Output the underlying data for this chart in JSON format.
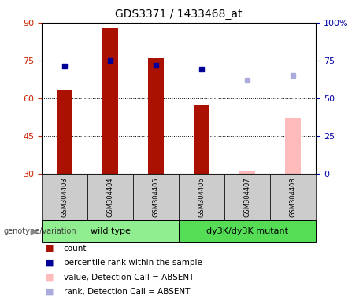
{
  "title": "GDS3371 / 1433468_at",
  "categories": [
    "GSM304403",
    "GSM304404",
    "GSM304405",
    "GSM304406",
    "GSM304407",
    "GSM304408"
  ],
  "count_values": [
    63,
    88,
    76,
    57,
    null,
    null
  ],
  "count_absent_values": [
    null,
    null,
    null,
    null,
    31,
    52
  ],
  "rank_values": [
    71,
    75,
    72,
    69,
    null,
    null
  ],
  "rank_absent_values": [
    null,
    null,
    null,
    null,
    62,
    65
  ],
  "ylim_left": [
    30,
    90
  ],
  "ylim_right": [
    0,
    100
  ],
  "yticks_left": [
    30,
    45,
    60,
    75,
    90
  ],
  "yticks_right": [
    0,
    25,
    50,
    75,
    100
  ],
  "group_labels": [
    "wild type",
    "dy3K/dy3K mutant"
  ],
  "group_ranges": [
    [
      0,
      3
    ],
    [
      3,
      6
    ]
  ],
  "group_colors": [
    "#90ee90",
    "#55dd55"
  ],
  "bar_color_present": "#aa1100",
  "bar_color_absent": "#ffbbbb",
  "rank_color_present": "#000099",
  "rank_color_absent": "#aaaadd",
  "background_plot": "#ffffff",
  "background_labels": "#cccccc",
  "bar_width": 0.35,
  "legend_items": [
    {
      "label": "count",
      "color": "#aa1100"
    },
    {
      "label": "percentile rank within the sample",
      "color": "#000099"
    },
    {
      "label": "value, Detection Call = ABSENT",
      "color": "#ffbbbb"
    },
    {
      "label": "rank, Detection Call = ABSENT",
      "color": "#aaaadd"
    }
  ],
  "genotype_label": "genotype/variation"
}
